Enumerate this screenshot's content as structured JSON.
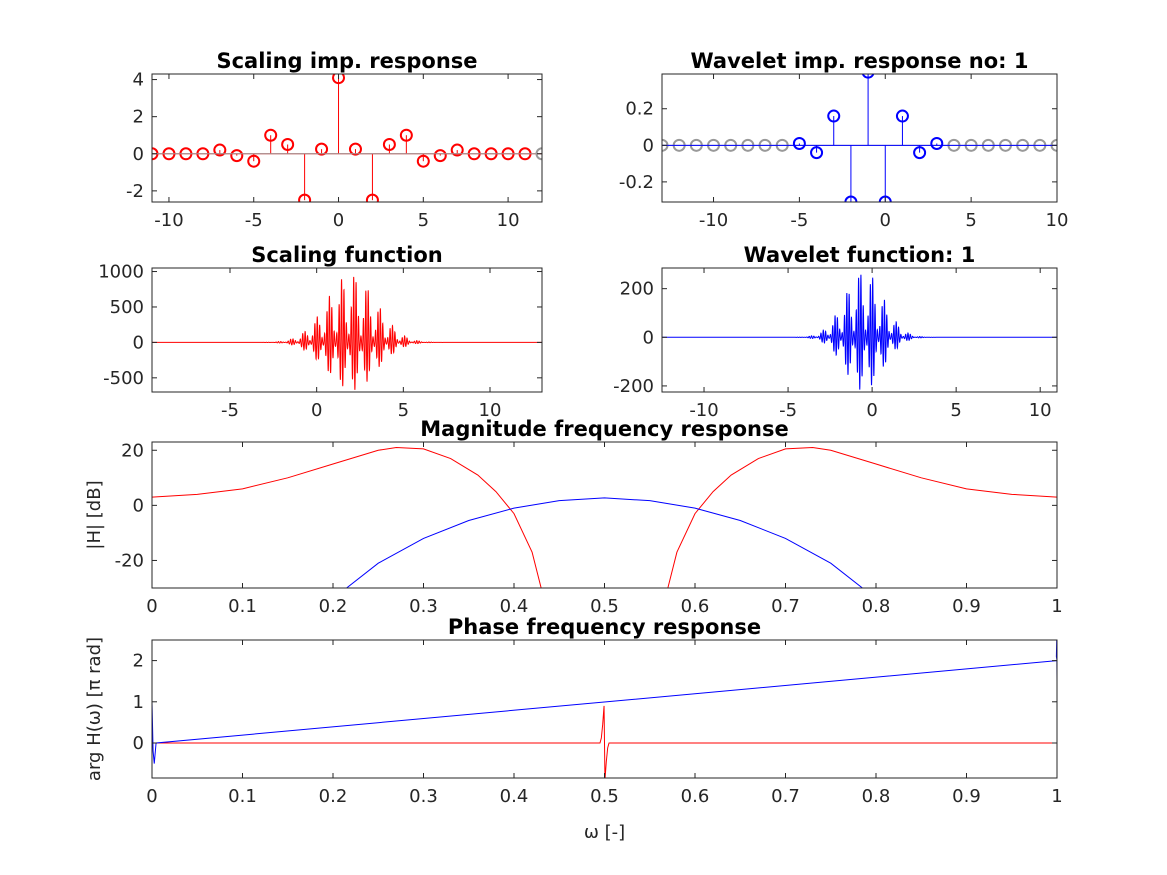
{
  "colors": {
    "scaling": "#ff0000",
    "wavelet": "#0000ff",
    "padding": "#999999",
    "axes": "#262626"
  },
  "chart_data": [
    {
      "id": "scaling_imp",
      "type": "stem",
      "title": "Scaling imp. response",
      "xlabel": "",
      "ylabel": "",
      "xlim": [
        -11,
        12
      ],
      "ylim": [
        -2.6,
        4.3
      ],
      "xticks": [
        -10,
        -5,
        0,
        5,
        10
      ],
      "yticks": [
        -2,
        0,
        2,
        4
      ],
      "grid": false,
      "series": [
        {
          "color": "scaling",
          "x": [
            -11,
            -10,
            -9,
            -8,
            -7,
            -6,
            -5,
            -4,
            -3,
            -2,
            -1,
            0,
            1,
            2,
            3,
            4,
            5,
            6,
            7,
            8,
            9,
            10,
            11
          ],
          "y": [
            0,
            0,
            0,
            0,
            0.2,
            -0.1,
            -0.4,
            1.0,
            0.5,
            -2.5,
            0.25,
            4.1,
            0.25,
            -2.5,
            0.5,
            1.0,
            -0.4,
            -0.1,
            0.2,
            0,
            0,
            0,
            0
          ]
        },
        {
          "color": "padding",
          "x": [
            12
          ],
          "y": [
            0
          ]
        }
      ]
    },
    {
      "id": "wavelet_imp",
      "type": "stem",
      "title": "Wavelet imp. response no: 1",
      "xlabel": "",
      "ylabel": "",
      "xlim": [
        -13,
        10
      ],
      "ylim": [
        -0.31,
        0.39
      ],
      "xticks": [
        -10,
        -5,
        0,
        5,
        10
      ],
      "xticklabels": [
        "-10",
        "-5",
        "0",
        "5",
        "10"
      ],
      "yticks": [
        -0.2,
        0,
        0.2
      ],
      "yticklabels": [
        "-0.2",
        "0",
        "0.2"
      ],
      "grid": false,
      "series": [
        {
          "color": "padding",
          "x": [
            -13,
            -12,
            -11,
            -10,
            -9,
            -8,
            -7,
            -6,
            4,
            5,
            6,
            7,
            8,
            9,
            10
          ],
          "y": [
            0,
            0,
            0,
            0,
            0,
            0,
            0,
            0,
            0,
            0,
            0,
            0,
            0,
            0,
            0
          ]
        },
        {
          "color": "wavelet",
          "x": [
            -5,
            -4,
            -3,
            -2,
            -1,
            0,
            1,
            2,
            3
          ],
          "y": [
            0.01,
            -0.04,
            0.16,
            -0.31,
            0.4,
            -0.31,
            0.16,
            -0.04,
            0.01
          ]
        }
      ]
    },
    {
      "id": "scaling_fn",
      "type": "line",
      "title": "Scaling function",
      "xlabel": "",
      "ylabel": "",
      "xlim": [
        -9.5,
        13
      ],
      "ylim": [
        -700,
        1050
      ],
      "xticks": [
        -5,
        0,
        5,
        10
      ],
      "yticks": [
        -500,
        0,
        500,
        1000
      ],
      "grid": false,
      "series": [
        {
          "color": "scaling",
          "signal": {
            "center": 2,
            "width": 2.0,
            "amplitude": 980,
            "negative_amplitude": 680,
            "period": 0.14
          }
        }
      ]
    },
    {
      "id": "wavelet_fn",
      "type": "line",
      "title": "Wavelet function: 1",
      "xlabel": "",
      "ylabel": "",
      "xlim": [
        -12.5,
        11
      ],
      "ylim": [
        -225,
        285
      ],
      "xticks": [
        -10,
        -5,
        0,
        5,
        10
      ],
      "yticks": [
        -200,
        0,
        200
      ],
      "grid": false,
      "series": [
        {
          "color": "wavelet",
          "signal": {
            "center": -0.5,
            "width": 1.6,
            "amplitude": 280,
            "negative_amplitude": 220,
            "period": 0.14
          }
        }
      ]
    },
    {
      "id": "magnitude",
      "type": "line",
      "title": "Magnitude frequency response",
      "xlabel": "ω [-]",
      "ylabel": "|H| [dB]",
      "xlim": [
        0,
        1
      ],
      "ylim": [
        -30,
        23
      ],
      "xticks": [
        0,
        0.1,
        0.2,
        0.3,
        0.4,
        0.5,
        0.6,
        0.7,
        0.8,
        0.9,
        1
      ],
      "yticks": [
        -20,
        0,
        20
      ],
      "grid": false,
      "series": [
        {
          "color": "scaling",
          "x": [
            0,
            0.05,
            0.1,
            0.15,
            0.2,
            0.25,
            0.27,
            0.3,
            0.33,
            0.36,
            0.38,
            0.4,
            0.42,
            0.43,
            0.57,
            0.58,
            0.6,
            0.62,
            0.64,
            0.67,
            0.7,
            0.73,
            0.75,
            0.8,
            0.85,
            0.9,
            0.95,
            1
          ],
          "y": [
            3,
            4,
            6,
            10,
            15,
            20,
            21,
            20.5,
            17,
            11,
            5,
            -3,
            -17,
            -30,
            -30,
            -17,
            -3,
            5,
            11,
            17,
            20.5,
            21,
            20,
            15,
            10,
            6,
            4,
            3
          ]
        },
        {
          "color": "wavelet",
          "x": [
            0.215,
            0.25,
            0.3,
            0.35,
            0.4,
            0.45,
            0.5,
            0.55,
            0.6,
            0.65,
            0.7,
            0.75,
            0.785
          ],
          "y": [
            -30,
            -21,
            -12,
            -5.5,
            -1,
            1.7,
            2.7,
            1.7,
            -1,
            -5.5,
            -12,
            -21,
            -30
          ]
        }
      ]
    },
    {
      "id": "phase",
      "type": "line",
      "title": "Phase frequency response",
      "xlabel": "ω [-]",
      "ylabel": "arg H(ω) [π rad]",
      "xlim": [
        0,
        1
      ],
      "ylim": [
        -0.85,
        2.5
      ],
      "xticks": [
        0,
        0.1,
        0.2,
        0.3,
        0.4,
        0.5,
        0.6,
        0.7,
        0.8,
        0.9,
        1
      ],
      "yticks": [
        0,
        1,
        2
      ],
      "grid": false,
      "series": [
        {
          "color": "scaling",
          "x": [
            0,
            0.495,
            0.4965,
            0.498,
            0.4995,
            0.5,
            0.5005,
            0.502,
            0.5035,
            0.505,
            1
          ],
          "y": [
            0,
            0,
            0.12,
            0.45,
            0.9,
            0,
            -0.9,
            -0.45,
            -0.12,
            0,
            0
          ]
        },
        {
          "color": "wavelet",
          "x": [
            0,
            0.0012,
            0.0025,
            0.0045,
            1,
            0.9993,
            0.9997,
            1
          ],
          "y": [
            1,
            -0.2,
            -0.5,
            0,
            2,
            2.1,
            2.5,
            1.5
          ]
        }
      ]
    }
  ]
}
